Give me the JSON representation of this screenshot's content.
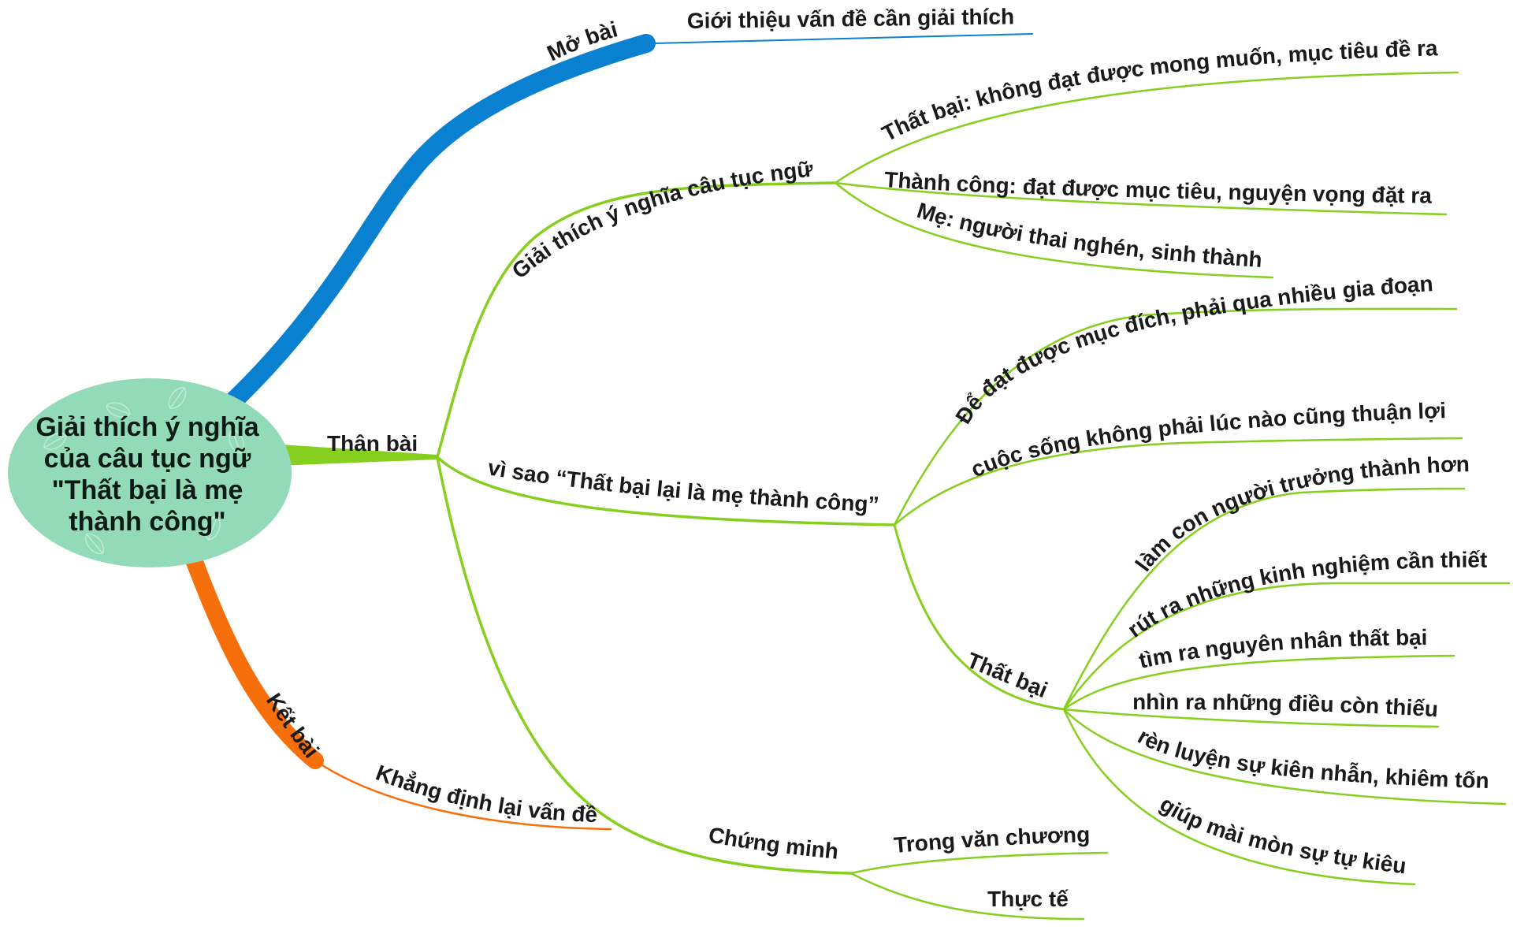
{
  "colors": {
    "open": "#0a80d0",
    "body": "#86cf1e",
    "close": "#f76f0a",
    "root_fill": "#93dab8"
  },
  "root": {
    "line1": "Giải thích ý nghĩa",
    "line2": "của câu tục ngữ",
    "line3": "\"Thất bại là mẹ",
    "line4": "thành công\""
  },
  "branches": {
    "mo_bai": {
      "label": "Mở bài",
      "children": [
        "Giới thiệu vấn đề cần giải thích"
      ]
    },
    "than_bai": {
      "label": "Thân bài",
      "giai_thich": {
        "label": "Giải thích ý nghĩa câu tục ngữ",
        "children": [
          "Thất bại: không đạt được mong muốn, mục tiêu đề ra",
          "Thành công: đạt được mục tiêu, nguyện vọng đặt ra",
          "Mẹ: người thai nghén, sinh thành"
        ]
      },
      "vi_sao": {
        "label": "vì sao “Thất bại lại là mẹ thành công”",
        "children": [
          "Để đạt được mục đích, phải qua nhiều gia đoạn",
          "cuộc sống không phải lúc nào cũng thuận lợi"
        ],
        "that_bai": {
          "label": "Thất bại",
          "children": [
            "làm con người trưởng thành hơn",
            "rút ra những kinh nghiệm cần thiết",
            "tìm ra nguyên nhân thất bại",
            "nhìn ra những điều còn thiếu",
            "rèn luyện sự kiên nhẫn, khiêm tốn",
            "giúp mài mòn sự tự kiêu"
          ]
        }
      },
      "chung_minh": {
        "label": "Chứng minh",
        "children": [
          "Trong văn chương",
          "Thực tế"
        ]
      }
    },
    "ket_bai": {
      "label": "Kết bài",
      "children": [
        "Khẳng định lại vấn đề"
      ]
    }
  }
}
